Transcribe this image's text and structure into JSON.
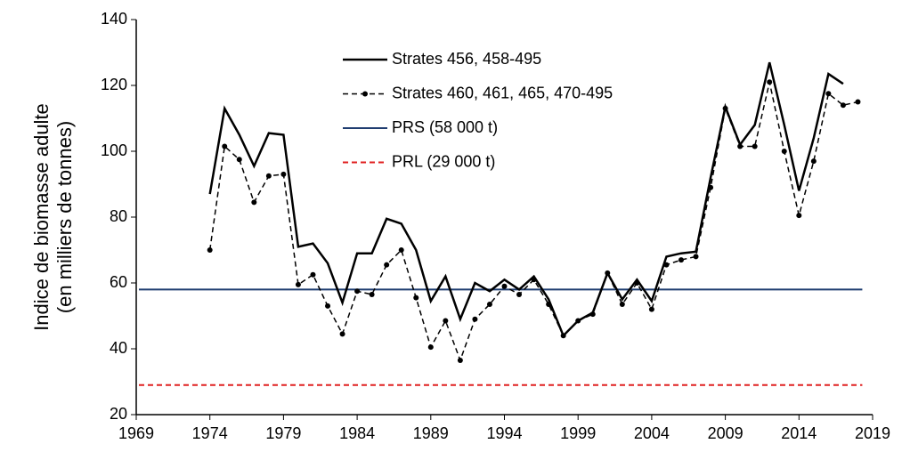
{
  "chart_data": {
    "type": "line",
    "ylabel": [
      "Indice de biomasse adulte",
      "(en milliers de tonnes)"
    ],
    "x": [
      1974,
      1975,
      1976,
      1977,
      1978,
      1979,
      1980,
      1981,
      1982,
      1983,
      1984,
      1985,
      1986,
      1987,
      1988,
      1989,
      1990,
      1991,
      1992,
      1993,
      1994,
      1995,
      1996,
      1997,
      1998,
      1999,
      2000,
      2001,
      2002,
      2003,
      2004,
      2005,
      2006,
      2007,
      2008,
      2009,
      2010,
      2011,
      2012,
      2013,
      2014,
      2015,
      2016,
      2017,
      2018
    ],
    "series": [
      {
        "name": "Strates 456, 458-495",
        "color": "#000000",
        "dash": false,
        "markers": false,
        "values": [
          87,
          113,
          105,
          95.5,
          105.5,
          105,
          71,
          72,
          66,
          54,
          69,
          69,
          79.5,
          78,
          70,
          54.5,
          62,
          49,
          60,
          57.5,
          61,
          58,
          62,
          55,
          44,
          48.5,
          51,
          63,
          55,
          61,
          54.5,
          68,
          69,
          69.5,
          92,
          113.5,
          102,
          108,
          127,
          108,
          88,
          104,
          123.5,
          120.5,
          null
        ]
      },
      {
        "name": "Strates 460, 461, 465, 470-495",
        "color": "#000000",
        "dash": true,
        "markers": true,
        "values": [
          70,
          101.5,
          97.5,
          84.5,
          92.5,
          93,
          59.5,
          62.5,
          53,
          44.5,
          57.5,
          56.5,
          65.5,
          70,
          55.5,
          40.5,
          48.5,
          36.5,
          49,
          53.5,
          59,
          56.5,
          61,
          53.5,
          44,
          48.5,
          50.5,
          63,
          53.5,
          60,
          52,
          65.5,
          67,
          68,
          89,
          113,
          101.5,
          101.5,
          121,
          100,
          80.5,
          97,
          117.5,
          114,
          115
        ]
      }
    ],
    "reference_lines": [
      {
        "name": "PRS (58 000 t)",
        "value": 58,
        "color": "#1f3d70",
        "dash": false
      },
      {
        "name": "PRL (29 000 t)",
        "value": 29,
        "color": "#e02020",
        "dash": true
      }
    ],
    "xlim": [
      1969,
      2019
    ],
    "xticks": [
      1969,
      1974,
      1979,
      1984,
      1989,
      1994,
      1999,
      2004,
      2009,
      2014,
      2019
    ],
    "ylim": [
      20,
      140
    ],
    "yticks": [
      20,
      40,
      60,
      80,
      100,
      120,
      140
    ],
    "grid": false,
    "legend": "top"
  }
}
